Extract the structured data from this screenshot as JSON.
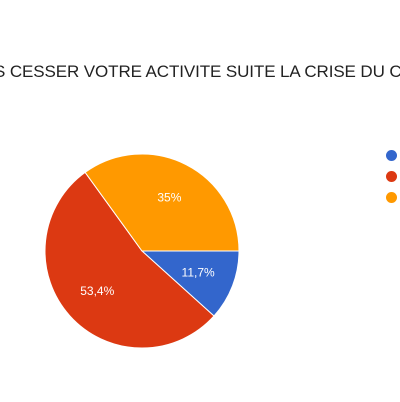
{
  "chart_data": {
    "type": "pie",
    "title": "S CESSER VOTRE ACTIVITE SUITE LA CRISE DU CO",
    "slices": [
      {
        "label": "",
        "value": 11.7,
        "value_label": "11,7%",
        "color": "#3366cc"
      },
      {
        "label": "",
        "value": 53.4,
        "value_label": "53,4%",
        "color": "#dc3912"
      },
      {
        "label": "",
        "value": 35.0,
        "value_label": "35%",
        "color": "#ff9900"
      }
    ],
    "legend_position": "right",
    "start_angle_deg": 90,
    "direction": "clockwise"
  }
}
